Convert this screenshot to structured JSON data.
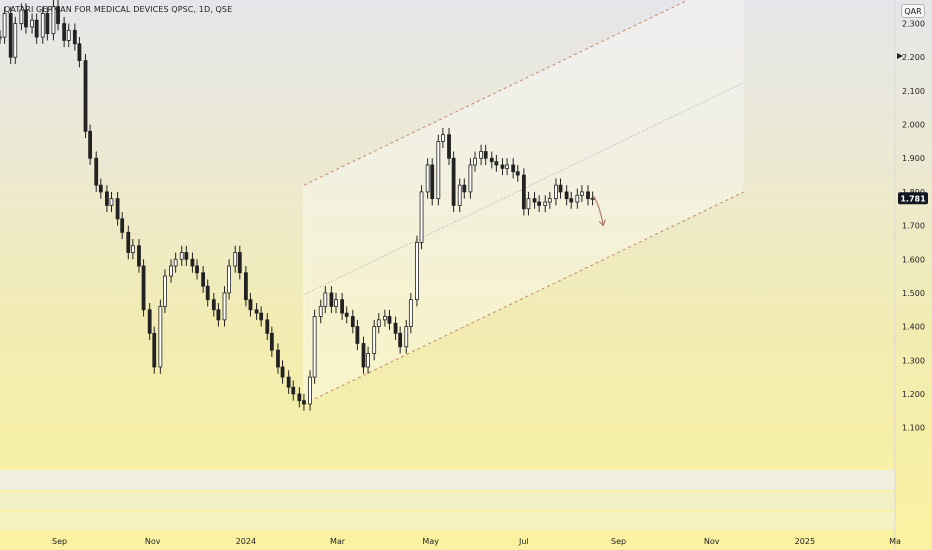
{
  "header": {
    "title": "QATARI GERMAN FOR MEDICAL DEVICES QPSC, 1D, QSE",
    "currency": "QAR"
  },
  "colors": {
    "up": "#3a3a3a",
    "down": "#1a1a1a",
    "channel_line": "#c48a6a",
    "mid_line": "#a8a8a8",
    "price_tag": "#131722"
  },
  "chart_data": {
    "type": "candlestick",
    "title": "QATARI GERMAN FOR MEDICAL DEVICES QPSC, 1D, QSE",
    "currency": "QAR",
    "last_price": "1.781",
    "y_ticks": [
      "2.300",
      "2.200",
      "2.100",
      "2.000",
      "1.900",
      "1.800",
      "1.700",
      "1.600",
      "1.500",
      "1.400",
      "1.300",
      "1.200",
      "1.100"
    ],
    "y_tick_values": [
      2.3,
      2.2,
      2.1,
      2.0,
      1.9,
      1.8,
      1.7,
      1.6,
      1.5,
      1.4,
      1.3,
      1.2,
      1.1
    ],
    "ylim": [
      0.98,
      2.37
    ],
    "x_ticks": [
      {
        "label": "Sep",
        "date": "2023-09-01"
      },
      {
        "label": "Nov",
        "date": "2023-11-01"
      },
      {
        "label": "2024",
        "date": "2024-01-01"
      },
      {
        "label": "Mar",
        "date": "2024-03-01"
      },
      {
        "label": "May",
        "date": "2024-05-01"
      },
      {
        "label": "Jul",
        "date": "2024-07-01"
      },
      {
        "label": "Sep",
        "date": "2024-09-01"
      },
      {
        "label": "Nov",
        "date": "2024-11-01"
      },
      {
        "label": "2025",
        "date": "2025-01-01"
      },
      {
        "label": "Ma",
        "date": "2025-03-01"
      }
    ],
    "xlim": [
      "2023-07-24",
      "2025-03-01"
    ],
    "series": [
      {
        "date": "2023-07-24",
        "close": 2.26
      },
      {
        "date": "2023-07-27",
        "close": 2.33
      },
      {
        "date": "2023-07-31",
        "close": 2.2
      },
      {
        "date": "2023-08-03",
        "close": 2.3
      },
      {
        "date": "2023-08-07",
        "close": 2.34
      },
      {
        "date": "2023-08-10",
        "close": 2.29
      },
      {
        "date": "2023-08-14",
        "close": 2.31
      },
      {
        "date": "2023-08-17",
        "close": 2.26
      },
      {
        "date": "2023-08-21",
        "close": 2.33
      },
      {
        "date": "2023-08-24",
        "close": 2.27
      },
      {
        "date": "2023-08-28",
        "close": 2.35
      },
      {
        "date": "2023-08-31",
        "close": 2.3
      },
      {
        "date": "2023-09-04",
        "close": 2.25
      },
      {
        "date": "2023-09-07",
        "close": 2.28
      },
      {
        "date": "2023-09-11",
        "close": 2.24
      },
      {
        "date": "2023-09-14",
        "close": 2.19
      },
      {
        "date": "2023-09-18",
        "close": 1.98
      },
      {
        "date": "2023-09-21",
        "close": 1.9
      },
      {
        "date": "2023-09-25",
        "close": 1.82
      },
      {
        "date": "2023-09-28",
        "close": 1.8
      },
      {
        "date": "2023-10-02",
        "close": 1.76
      },
      {
        "date": "2023-10-05",
        "close": 1.78
      },
      {
        "date": "2023-10-09",
        "close": 1.72
      },
      {
        "date": "2023-10-12",
        "close": 1.68
      },
      {
        "date": "2023-10-16",
        "close": 1.62
      },
      {
        "date": "2023-10-19",
        "close": 1.64
      },
      {
        "date": "2023-10-23",
        "close": 1.58
      },
      {
        "date": "2023-10-26",
        "close": 1.45
      },
      {
        "date": "2023-10-30",
        "close": 1.38
      },
      {
        "date": "2023-11-02",
        "close": 1.28
      },
      {
        "date": "2023-11-06",
        "close": 1.46
      },
      {
        "date": "2023-11-09",
        "close": 1.55
      },
      {
        "date": "2023-11-13",
        "close": 1.58
      },
      {
        "date": "2023-11-16",
        "close": 1.6
      },
      {
        "date": "2023-11-20",
        "close": 1.62
      },
      {
        "date": "2023-11-23",
        "close": 1.6
      },
      {
        "date": "2023-11-27",
        "close": 1.58
      },
      {
        "date": "2023-11-30",
        "close": 1.56
      },
      {
        "date": "2023-12-04",
        "close": 1.52
      },
      {
        "date": "2023-12-07",
        "close": 1.48
      },
      {
        "date": "2023-12-11",
        "close": 1.45
      },
      {
        "date": "2023-12-14",
        "close": 1.42
      },
      {
        "date": "2023-12-18",
        "close": 1.5
      },
      {
        "date": "2023-12-21",
        "close": 1.58
      },
      {
        "date": "2023-12-25",
        "close": 1.62
      },
      {
        "date": "2023-12-28",
        "close": 1.56
      },
      {
        "date": "2024-01-01",
        "close": 1.48
      },
      {
        "date": "2024-01-04",
        "close": 1.45
      },
      {
        "date": "2024-01-08",
        "close": 1.44
      },
      {
        "date": "2024-01-11",
        "close": 1.42
      },
      {
        "date": "2024-01-15",
        "close": 1.38
      },
      {
        "date": "2024-01-18",
        "close": 1.33
      },
      {
        "date": "2024-01-22",
        "close": 1.28
      },
      {
        "date": "2024-01-25",
        "close": 1.25
      },
      {
        "date": "2024-01-29",
        "close": 1.22
      },
      {
        "date": "2024-02-01",
        "close": 1.2
      },
      {
        "date": "2024-02-05",
        "close": 1.18
      },
      {
        "date": "2024-02-08",
        "close": 1.17
      },
      {
        "date": "2024-02-12",
        "close": 1.25
      },
      {
        "date": "2024-02-15",
        "close": 1.43
      },
      {
        "date": "2024-02-19",
        "close": 1.46
      },
      {
        "date": "2024-02-22",
        "close": 1.5
      },
      {
        "date": "2024-02-26",
        "close": 1.46
      },
      {
        "date": "2024-02-29",
        "close": 1.48
      },
      {
        "date": "2024-03-04",
        "close": 1.44
      },
      {
        "date": "2024-03-07",
        "close": 1.43
      },
      {
        "date": "2024-03-11",
        "close": 1.4
      },
      {
        "date": "2024-03-14",
        "close": 1.35
      },
      {
        "date": "2024-03-18",
        "close": 1.28
      },
      {
        "date": "2024-03-21",
        "close": 1.32
      },
      {
        "date": "2024-03-25",
        "close": 1.4
      },
      {
        "date": "2024-03-28",
        "close": 1.42
      },
      {
        "date": "2024-04-01",
        "close": 1.43
      },
      {
        "date": "2024-04-04",
        "close": 1.41
      },
      {
        "date": "2024-04-08",
        "close": 1.38
      },
      {
        "date": "2024-04-11",
        "close": 1.34
      },
      {
        "date": "2024-04-15",
        "close": 1.4
      },
      {
        "date": "2024-04-18",
        "close": 1.48
      },
      {
        "date": "2024-04-22",
        "close": 1.65
      },
      {
        "date": "2024-04-25",
        "close": 1.8
      },
      {
        "date": "2024-04-29",
        "close": 1.88
      },
      {
        "date": "2024-05-02",
        "close": 1.78
      },
      {
        "date": "2024-05-06",
        "close": 1.95
      },
      {
        "date": "2024-05-09",
        "close": 1.97
      },
      {
        "date": "2024-05-13",
        "close": 1.9
      },
      {
        "date": "2024-05-16",
        "close": 1.76
      },
      {
        "date": "2024-05-20",
        "close": 1.82
      },
      {
        "date": "2024-05-23",
        "close": 1.8
      },
      {
        "date": "2024-05-27",
        "close": 1.88
      },
      {
        "date": "2024-05-30",
        "close": 1.9
      },
      {
        "date": "2024-06-03",
        "close": 1.92
      },
      {
        "date": "2024-06-06",
        "close": 1.9
      },
      {
        "date": "2024-06-10",
        "close": 1.89
      },
      {
        "date": "2024-06-13",
        "close": 1.88
      },
      {
        "date": "2024-06-17",
        "close": 1.87
      },
      {
        "date": "2024-06-20",
        "close": 1.88
      },
      {
        "date": "2024-06-24",
        "close": 1.86
      },
      {
        "date": "2024-06-27",
        "close": 1.85
      },
      {
        "date": "2024-07-01",
        "close": 1.75
      },
      {
        "date": "2024-07-04",
        "close": 1.78
      },
      {
        "date": "2024-07-08",
        "close": 1.77
      },
      {
        "date": "2024-07-11",
        "close": 1.76
      },
      {
        "date": "2024-07-15",
        "close": 1.77
      },
      {
        "date": "2024-07-18",
        "close": 1.78
      },
      {
        "date": "2024-07-22",
        "close": 1.82
      },
      {
        "date": "2024-07-25",
        "close": 1.8
      },
      {
        "date": "2024-07-29",
        "close": 1.78
      },
      {
        "date": "2024-08-01",
        "close": 1.77
      },
      {
        "date": "2024-08-05",
        "close": 1.79
      },
      {
        "date": "2024-08-08",
        "close": 1.8
      },
      {
        "date": "2024-08-12",
        "close": 1.78
      },
      {
        "date": "2024-08-15",
        "close": 1.781
      }
    ],
    "channel": {
      "start": {
        "date": "2024-02-08",
        "date_value_lower": 1.17,
        "date_value_upper": 1.82
      },
      "end": {
        "date": "2024-11-22",
        "date_value_lower": 1.8,
        "date_value_upper": 2.45
      },
      "midline": true
    },
    "arrow": {
      "from_date": "2024-08-15",
      "from_value": 1.79,
      "to_date": "2024-08-22",
      "to_value": 1.7
    }
  }
}
